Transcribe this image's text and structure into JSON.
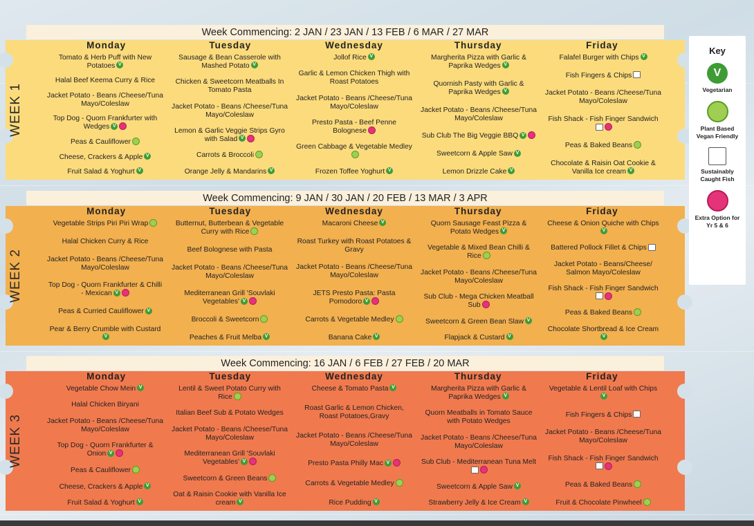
{
  "days": [
    "Monday",
    "Tuesday",
    "Wednesday",
    "Thursday",
    "Friday"
  ],
  "weeks": [
    {
      "label": "WEEK 1",
      "commencing": "Week Commencing: 2 JAN / 23 JAN / 13 FEB / 6 MAR / 27 MAR",
      "menu": [
        [
          {
            "t": "Tomato & Herb Puff with New Potatoes",
            "i": [
              "v"
            ]
          },
          {
            "t": "Halal Beef Keema Curry & Rice",
            "i": []
          },
          {
            "t": "Jacket Potato - Beans /Cheese/Tuna Mayo/Coleslaw",
            "i": []
          },
          {
            "t": "Top Dog - Quorn Frankfurter with Wedges",
            "i": [
              "v",
              "ex"
            ]
          },
          {
            "t": "Peas & Cauliflower",
            "i": [
              "pb"
            ]
          },
          {
            "t": "Cheese, Crackers & Apple",
            "i": [
              "v"
            ]
          },
          {
            "t": "Fruit Salad & Yoghurt",
            "i": [
              "v"
            ]
          }
        ],
        [
          {
            "t": "Sausage & Bean Casserole with Mashed Potato",
            "i": [
              "v"
            ]
          },
          {
            "t": "Chicken & Sweetcorn Meatballs In Tomato Pasta",
            "i": []
          },
          {
            "t": "Jacket Potato - Beans /Cheese/Tuna Mayo/Coleslaw",
            "i": []
          },
          {
            "t": "Lemon & Garlic Veggie Strips Gyro with Salad",
            "i": [
              "v",
              "ex"
            ]
          },
          {
            "t": "Carrots & Broccoli",
            "i": [
              "pb"
            ]
          },
          {
            "t": "Orange Jelly & Mandarins",
            "i": [
              "v"
            ]
          }
        ],
        [
          {
            "t": "Jollof Rice",
            "i": [
              "v"
            ]
          },
          {
            "t": "Garlic & Lemon Chicken Thigh with Roast Potatoes",
            "i": []
          },
          {
            "t": "Jacket Potato - Beans /Cheese/Tuna Mayo/Coleslaw",
            "i": []
          },
          {
            "t": "Presto Pasta - Beef Penne Bolognese",
            "i": [
              "ex"
            ]
          },
          {
            "t": "Green Cabbage & Vegetable Medley",
            "i": [
              "pb"
            ]
          },
          {
            "t": "Frozen Toffee Yoghurt",
            "i": [
              "v"
            ]
          }
        ],
        [
          {
            "t": "Margherita Pizza with Garlic & Paprika Wedges",
            "i": [
              "v"
            ]
          },
          {
            "t": "Quornish Pasty with Garlic & Paprika Wedges",
            "i": [
              "v"
            ]
          },
          {
            "t": "Jacket Potato - Beans /Cheese/Tuna Mayo/Coleslaw",
            "i": []
          },
          {
            "t": "Sub Club The Big Veggie BBQ",
            "i": [
              "v",
              "ex"
            ]
          },
          {
            "t": "Sweetcorn & Apple Saw",
            "i": [
              "v"
            ]
          },
          {
            "t": "Lemon Drizzle Cake",
            "i": [
              "v"
            ]
          }
        ],
        [
          {
            "t": "Falafel Burger with Chips",
            "i": [
              "v"
            ]
          },
          {
            "t": "Fish Fingers & Chips",
            "i": [
              "fish"
            ]
          },
          {
            "t": "Jacket Potato - Beans /Cheese/Tuna Mayo/Coleslaw",
            "i": []
          },
          {
            "t": "Fish Shack - Fish Finger Sandwich",
            "i": [
              "fish",
              "ex"
            ]
          },
          {
            "t": "Peas & Baked Beans",
            "i": [
              "pb"
            ]
          },
          {
            "t": "Chocolate & Raisin Oat Cookie & Vanilla Ice cream",
            "i": [
              "v"
            ]
          }
        ]
      ]
    },
    {
      "label": "WEEK 2",
      "commencing": "Week Commencing: 9 JAN / 30 JAN / 20 FEB / 13 MAR / 3 APR",
      "menu": [
        [
          {
            "t": "Vegetable Strips Piri Piri Wrap",
            "i": [
              "pb"
            ]
          },
          {
            "t": "Halal Chicken Curry & Rice",
            "i": []
          },
          {
            "t": "Jacket Potato - Beans /Cheese/Tuna Mayo/Coleslaw",
            "i": []
          },
          {
            "t": "Top Dog - Quorn Frankfurter & Chilli - Mexican",
            "i": [
              "v",
              "ex"
            ]
          },
          {
            "t": "Peas & Curried Cauliflower",
            "i": [
              "v"
            ]
          },
          {
            "t": "Pear & Berry Crumble with Custard",
            "i": [
              "v"
            ]
          }
        ],
        [
          {
            "t": "Butternut, Butterbean & Vegetable Curry with Rice",
            "i": [
              "pb"
            ]
          },
          {
            "t": "Beef Bolognese with Pasta",
            "i": []
          },
          {
            "t": "Jacket Potato - Beans /Cheese/Tuna Mayo/Coleslaw",
            "i": []
          },
          {
            "t": "Mediterranean Grill 'Souvlaki Vegetables'",
            "i": [
              "v",
              "ex"
            ]
          },
          {
            "t": "Broccoli & Sweetcorn",
            "i": [
              "pb"
            ]
          },
          {
            "t": "Peaches & Fruit Melba",
            "i": [
              "v"
            ]
          }
        ],
        [
          {
            "t": "Macaroni Cheese",
            "i": [
              "v"
            ]
          },
          {
            "t": "Roast Turkey with Roast Potatoes & Gravy",
            "i": []
          },
          {
            "t": "Jacket Potato - Beans /Cheese/Tuna Mayo/Coleslaw",
            "i": []
          },
          {
            "t": "JETS Presto Pasta: Pasta Pomodoro",
            "i": [
              "v",
              "ex"
            ]
          },
          {
            "t": "Carrots & Vegetable Medley",
            "i": [
              "pb"
            ]
          },
          {
            "t": "Banana Cake",
            "i": [
              "v"
            ]
          }
        ],
        [
          {
            "t": "Quorn Sausage Feast Pizza & Potato Wedges",
            "i": [
              "v"
            ]
          },
          {
            "t": "Vegetable & Mixed Bean Chilli & Rice",
            "i": [
              "pb"
            ]
          },
          {
            "t": "Jacket Potato - Beans /Cheese/Tuna Mayo/Coleslaw",
            "i": []
          },
          {
            "t": "Sub Club - Mega Chicken Meatball Sub",
            "i": [
              "ex"
            ]
          },
          {
            "t": "Sweetcorn & Green Bean Slaw",
            "i": [
              "v"
            ]
          },
          {
            "t": "Flapjack & Custard",
            "i": [
              "v"
            ]
          }
        ],
        [
          {
            "t": "Cheese & Onion Quiche with Chips",
            "i": [
              "v"
            ]
          },
          {
            "t": "Battered Pollock Fillet & Chips",
            "i": [
              "fish"
            ]
          },
          {
            "t": "Jacket Potato - Beans/Cheese/ Salmon Mayo/Coleslaw",
            "i": []
          },
          {
            "t": "Fish Shack - Fish Finger Sandwich",
            "i": [
              "fish",
              "ex"
            ]
          },
          {
            "t": "Peas & Baked Beans",
            "i": [
              "pb"
            ]
          },
          {
            "t": "Chocolate Shortbread & Ice Cream",
            "i": [
              "v"
            ]
          }
        ]
      ]
    },
    {
      "label": "WEEK 3",
      "commencing": "Week Commencing: 16 JAN / 6 FEB / 27 FEB / 20 MAR",
      "menu": [
        [
          {
            "t": "Vegetable Chow Mein",
            "i": [
              "v"
            ]
          },
          {
            "t": "Halal Chicken Biryani",
            "i": []
          },
          {
            "t": "Jacket Potato - Beans /Cheese/Tuna Mayo/Coleslaw",
            "i": []
          },
          {
            "t": "Top Dog - Quorn Frankfurter & Onion",
            "i": [
              "v",
              "ex"
            ]
          },
          {
            "t": "Peas & Cauliflower",
            "i": [
              "pb"
            ]
          },
          {
            "t": "Cheese, Crackers & Apple",
            "i": [
              "v"
            ]
          },
          {
            "t": "Fruit Salad & Yoghurt",
            "i": [
              "v"
            ]
          }
        ],
        [
          {
            "t": "Lentil & Sweet Potato Curry with Rice",
            "i": [
              "pb"
            ]
          },
          {
            "t": "Italian Beef Sub & Potato Wedges",
            "i": []
          },
          {
            "t": "Jacket Potato - Beans /Cheese/Tuna Mayo/Coleslaw",
            "i": []
          },
          {
            "t": "Mediterranean Grill 'Souvlaki Vegetables'",
            "i": [
              "v",
              "ex"
            ]
          },
          {
            "t": "Sweetcorn & Green Beans",
            "i": [
              "pb"
            ]
          },
          {
            "t": "Oat & Raisin Cookie with Vanilla Ice cream",
            "i": [
              "v"
            ]
          }
        ],
        [
          {
            "t": "Cheese & Tomato Pasta",
            "i": [
              "v"
            ]
          },
          {
            "t": "Roast Garlic & Lemon Chicken, Roast Potatoes,Gravy",
            "i": []
          },
          {
            "t": "Jacket Potato - Beans /Cheese/Tuna Mayo/Coleslaw",
            "i": []
          },
          {
            "t": "Presto Pasta Philly Mac",
            "i": [
              "v",
              "ex"
            ]
          },
          {
            "t": "Carrots & Vegetable Medley",
            "i": [
              "pb"
            ]
          },
          {
            "t": "Rice Pudding",
            "i": [
              "v"
            ]
          }
        ],
        [
          {
            "t": "Margherita Pizza with Garlic & Paprika Wedges",
            "i": [
              "v"
            ]
          },
          {
            "t": "Quorn Meatballs in Tomato Sauce with Potato Wedges",
            "i": []
          },
          {
            "t": "Jacket Potato - Beans /Cheese/Tuna Mayo/Coleslaw",
            "i": []
          },
          {
            "t": "Sub Club - Mediterranean Tuna Melt",
            "i": [
              "fish",
              "ex"
            ]
          },
          {
            "t": "Sweetcorn & Apple Saw",
            "i": [
              "v"
            ]
          },
          {
            "t": "Strawberry Jelly & Ice Cream",
            "i": [
              "v"
            ]
          }
        ],
        [
          {
            "t": "Vegetable & Lentil Loaf with Chips",
            "i": [
              "v"
            ]
          },
          {
            "t": "Fish Fingers & Chips",
            "i": [
              "fish"
            ]
          },
          {
            "t": "Jacket Potato - Beans /Cheese/Tuna Mayo/Coleslaw",
            "i": []
          },
          {
            "t": "Fish Shack - Fish Finger Sandwich",
            "i": [
              "fish",
              "ex"
            ]
          },
          {
            "t": "Peas & Baked Beans",
            "i": [
              "pb"
            ]
          },
          {
            "t": "Fruit & Chocolate Pinwheel",
            "i": [
              "pb"
            ]
          }
        ]
      ]
    }
  ],
  "colors": {
    "week1": "#fcdb7c",
    "week2": "#f2b04f",
    "week3": "#f07a4e",
    "header": "#fbf0dc",
    "vegetarian": "#3f9c35",
    "plant_based": "#9fcf52",
    "extra_option": "#e5337a"
  },
  "key": {
    "title": "Key",
    "v_glyph": "V",
    "entries": [
      {
        "icon": "vegetarian-icon",
        "label": "Vegetarian"
      },
      {
        "icon": "plant-based-icon",
        "label": "Plant Based Vegan Friendly"
      },
      {
        "icon": "sustainable-fish-icon",
        "label": "Sustainably Caught Fish"
      },
      {
        "icon": "extra-option-icon",
        "label": "Extra Option for Yr 5 & 6"
      }
    ]
  }
}
